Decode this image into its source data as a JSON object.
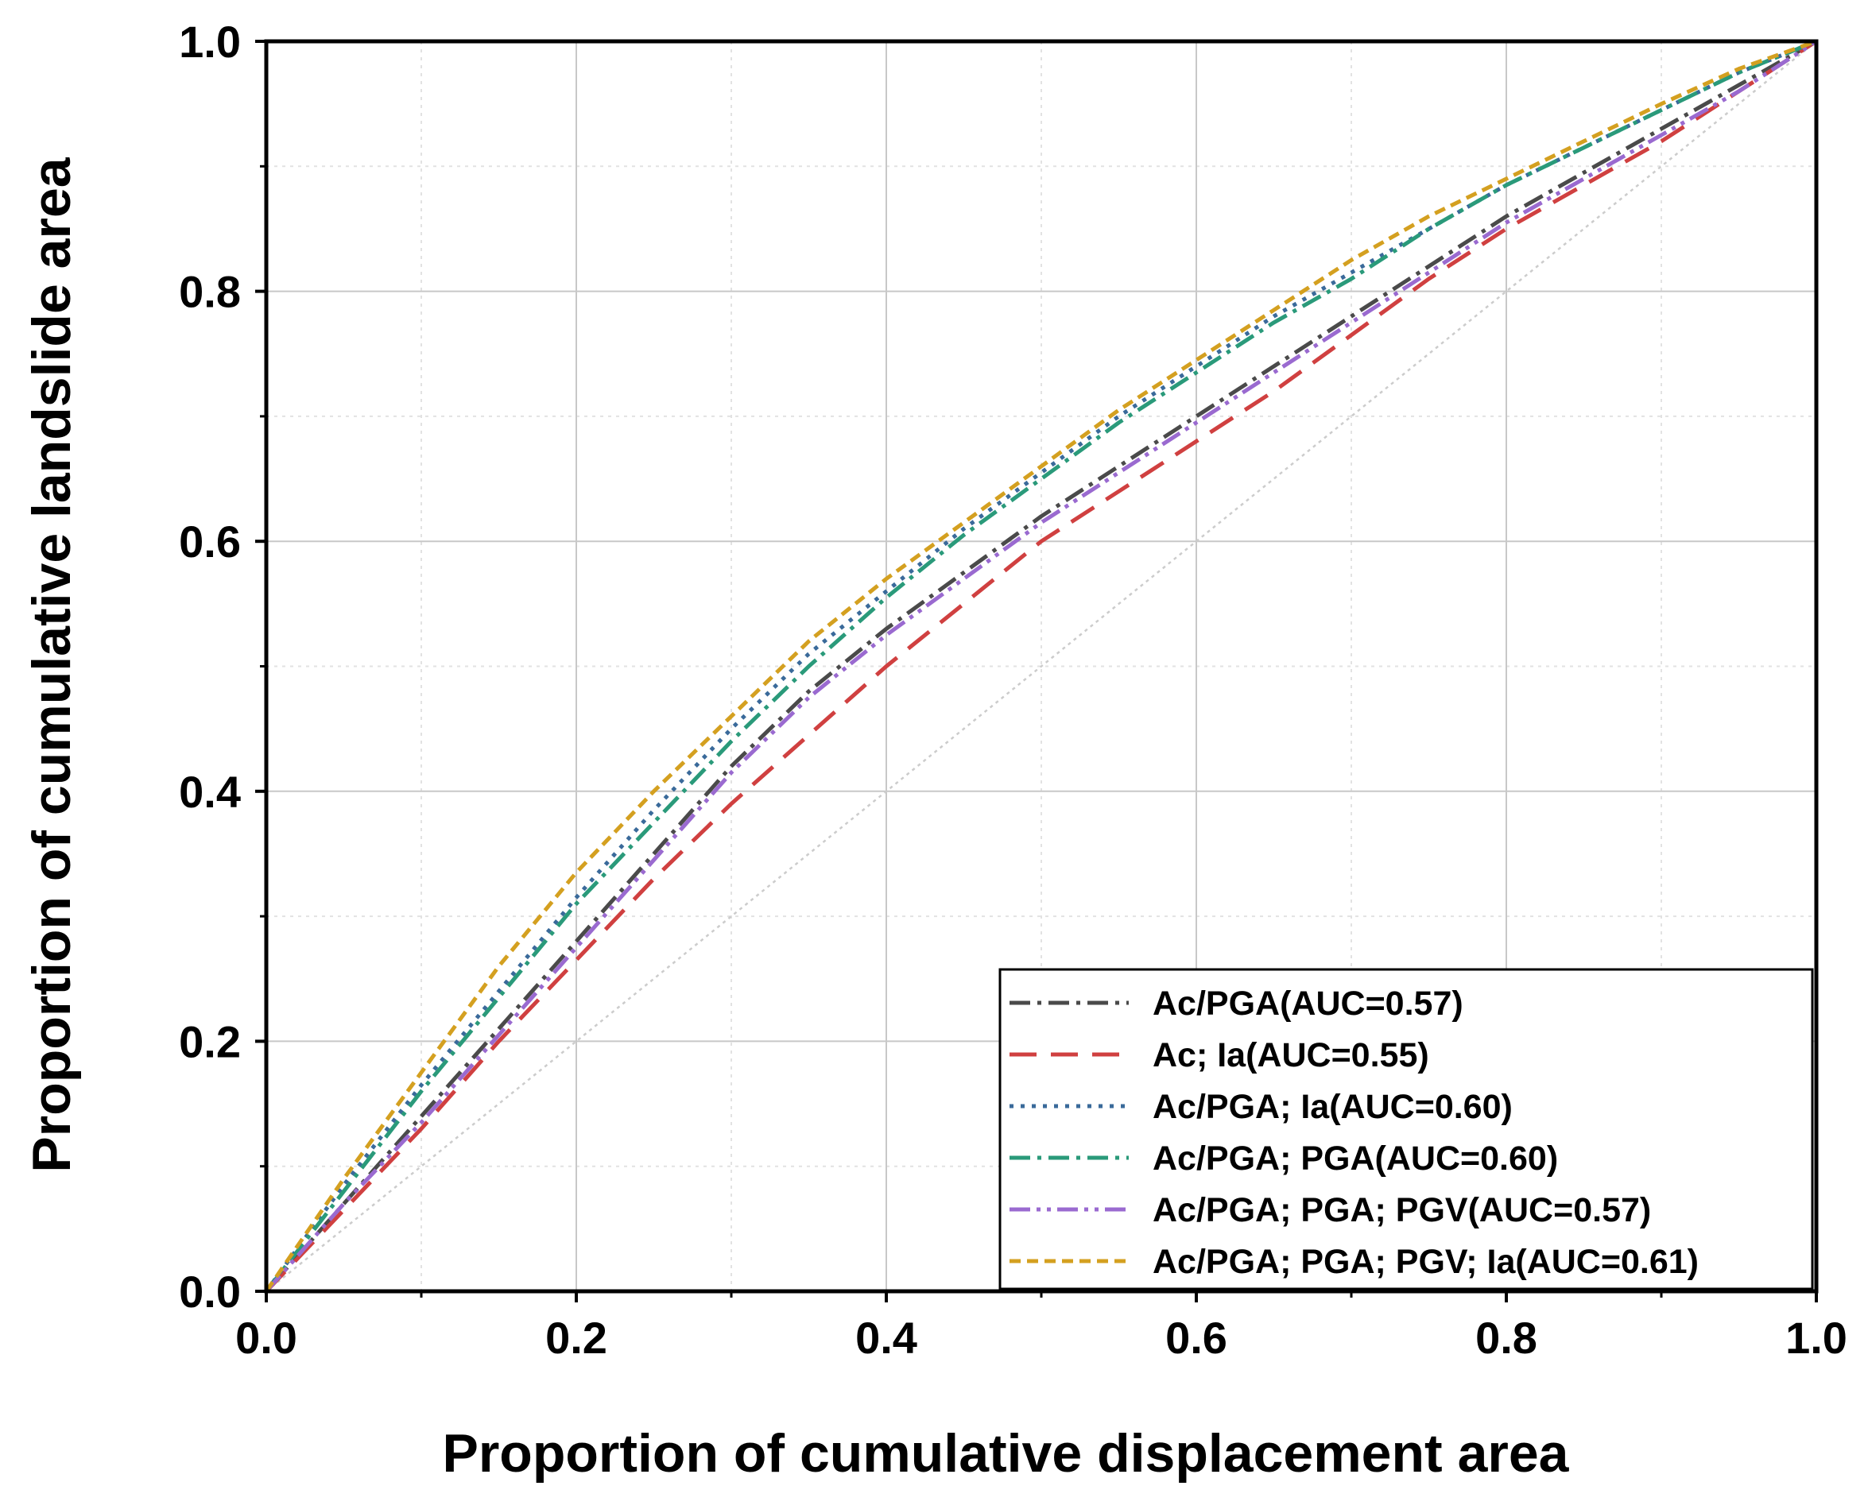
{
  "chart_data": {
    "type": "line",
    "title": "",
    "xlabel": "Proportion of cumulative displacement area",
    "ylabel": "Proportion of cumulative landslide area",
    "xlim": [
      0,
      1
    ],
    "ylim": [
      0,
      1
    ],
    "x_ticks": [
      "0.0",
      "0.2",
      "0.4",
      "0.6",
      "0.8",
      "1.0"
    ],
    "y_ticks": [
      "0.0",
      "0.2",
      "0.4",
      "0.6",
      "0.8",
      "1.0"
    ],
    "grid": true,
    "legend_position": "bottom-right",
    "reference_line": {
      "x": [
        0,
        1
      ],
      "y": [
        0,
        1
      ],
      "color": "#cccccc"
    },
    "series": [
      {
        "name": "Ac/PGA(AUC=0.57)",
        "color": "#4a4a4a",
        "dash": "dashdot",
        "x": [
          0,
          0.05,
          0.1,
          0.15,
          0.2,
          0.25,
          0.3,
          0.35,
          0.4,
          0.45,
          0.5,
          0.55,
          0.6,
          0.65,
          0.7,
          0.75,
          0.8,
          0.85,
          0.9,
          0.95,
          1.0
        ],
        "y": [
          0,
          0.07,
          0.14,
          0.21,
          0.28,
          0.35,
          0.42,
          0.48,
          0.53,
          0.575,
          0.62,
          0.66,
          0.7,
          0.74,
          0.78,
          0.82,
          0.86,
          0.895,
          0.93,
          0.965,
          1.0
        ]
      },
      {
        "name": "Ac; Ia(AUC=0.55)",
        "color": "#d04040",
        "dash": "dash",
        "x": [
          0,
          0.05,
          0.1,
          0.15,
          0.2,
          0.25,
          0.3,
          0.35,
          0.4,
          0.45,
          0.5,
          0.55,
          0.6,
          0.65,
          0.7,
          0.75,
          0.8,
          0.85,
          0.9,
          0.95,
          1.0
        ],
        "y": [
          0,
          0.065,
          0.13,
          0.2,
          0.265,
          0.33,
          0.39,
          0.445,
          0.5,
          0.55,
          0.6,
          0.64,
          0.68,
          0.72,
          0.765,
          0.81,
          0.85,
          0.885,
          0.92,
          0.96,
          1.0
        ]
      },
      {
        "name": "Ac/PGA; Ia(AUC=0.60)",
        "color": "#3a6a9a",
        "dash": "dot",
        "x": [
          0,
          0.05,
          0.1,
          0.15,
          0.2,
          0.25,
          0.3,
          0.35,
          0.4,
          0.45,
          0.5,
          0.55,
          0.6,
          0.65,
          0.7,
          0.75,
          0.8,
          0.85,
          0.9,
          0.95,
          1.0
        ],
        "y": [
          0,
          0.085,
          0.165,
          0.24,
          0.315,
          0.385,
          0.45,
          0.51,
          0.56,
          0.61,
          0.655,
          0.7,
          0.74,
          0.78,
          0.815,
          0.85,
          0.885,
          0.915,
          0.945,
          0.975,
          1.0
        ]
      },
      {
        "name": "Ac/PGA; PGA(AUC=0.60)",
        "color": "#2a9a7a",
        "dash": "dashdot",
        "x": [
          0,
          0.05,
          0.1,
          0.15,
          0.2,
          0.25,
          0.3,
          0.35,
          0.4,
          0.45,
          0.5,
          0.55,
          0.6,
          0.65,
          0.7,
          0.75,
          0.8,
          0.85,
          0.9,
          0.95,
          1.0
        ],
        "y": [
          0,
          0.08,
          0.16,
          0.235,
          0.31,
          0.375,
          0.44,
          0.5,
          0.555,
          0.605,
          0.65,
          0.695,
          0.735,
          0.775,
          0.81,
          0.85,
          0.885,
          0.915,
          0.945,
          0.975,
          1.0
        ]
      },
      {
        "name": "Ac/PGA; PGA; PGV(AUC=0.57)",
        "color": "#9a6ad0",
        "dash": "dashdotdot",
        "x": [
          0,
          0.05,
          0.1,
          0.15,
          0.2,
          0.25,
          0.3,
          0.35,
          0.4,
          0.45,
          0.5,
          0.55,
          0.6,
          0.65,
          0.7,
          0.75,
          0.8,
          0.85,
          0.9,
          0.95,
          1.0
        ],
        "y": [
          0,
          0.07,
          0.135,
          0.205,
          0.275,
          0.345,
          0.415,
          0.475,
          0.525,
          0.57,
          0.615,
          0.655,
          0.695,
          0.735,
          0.775,
          0.815,
          0.855,
          0.89,
          0.925,
          0.96,
          1.0
        ]
      },
      {
        "name": "Ac/PGA; PGA; PGV; Ia(AUC=0.61)",
        "color": "#d4a020",
        "dash": "shortdash",
        "x": [
          0,
          0.05,
          0.1,
          0.15,
          0.2,
          0.25,
          0.3,
          0.35,
          0.4,
          0.45,
          0.5,
          0.55,
          0.6,
          0.65,
          0.7,
          0.75,
          0.8,
          0.85,
          0.9,
          0.95,
          1.0
        ],
        "y": [
          0,
          0.09,
          0.175,
          0.26,
          0.335,
          0.4,
          0.46,
          0.52,
          0.57,
          0.615,
          0.66,
          0.705,
          0.745,
          0.785,
          0.825,
          0.86,
          0.89,
          0.92,
          0.95,
          0.978,
          1.0
        ]
      }
    ]
  }
}
